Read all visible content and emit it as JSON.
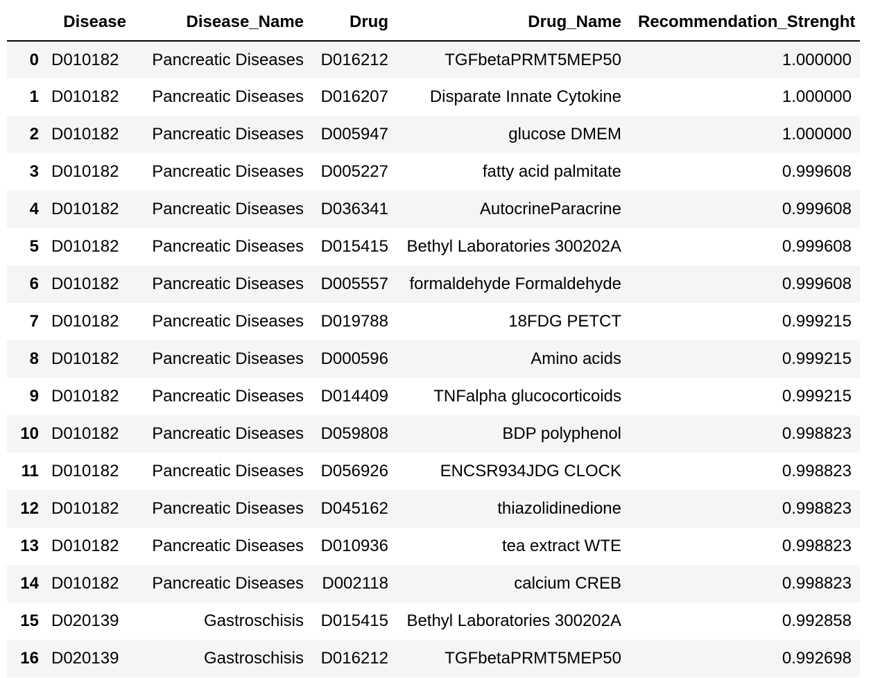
{
  "table": {
    "columns": [
      "",
      "Disease",
      "Disease_Name",
      "Drug",
      "Drug_Name",
      "Recommendation_Strenght"
    ],
    "rows": [
      {
        "index": "0",
        "disease": "D010182",
        "disease_name": "Pancreatic Diseases",
        "drug": "D016212",
        "drug_name": "TGFbetaPRMT5MEP50",
        "strength": "1.000000"
      },
      {
        "index": "1",
        "disease": "D010182",
        "disease_name": "Pancreatic Diseases",
        "drug": "D016207",
        "drug_name": "Disparate Innate Cytokine",
        "strength": "1.000000"
      },
      {
        "index": "2",
        "disease": "D010182",
        "disease_name": "Pancreatic Diseases",
        "drug": "D005947",
        "drug_name": "glucose DMEM",
        "strength": "1.000000"
      },
      {
        "index": "3",
        "disease": "D010182",
        "disease_name": "Pancreatic Diseases",
        "drug": "D005227",
        "drug_name": "fatty acid palmitate",
        "strength": "0.999608"
      },
      {
        "index": "4",
        "disease": "D010182",
        "disease_name": "Pancreatic Diseases",
        "drug": "D036341",
        "drug_name": "AutocrineParacrine",
        "strength": "0.999608"
      },
      {
        "index": "5",
        "disease": "D010182",
        "disease_name": "Pancreatic Diseases",
        "drug": "D015415",
        "drug_name": "Bethyl Laboratories 300202A",
        "strength": "0.999608"
      },
      {
        "index": "6",
        "disease": "D010182",
        "disease_name": "Pancreatic Diseases",
        "drug": "D005557",
        "drug_name": "formaldehyde Formaldehyde",
        "strength": "0.999608"
      },
      {
        "index": "7",
        "disease": "D010182",
        "disease_name": "Pancreatic Diseases",
        "drug": "D019788",
        "drug_name": "18FDG PETCT",
        "strength": "0.999215"
      },
      {
        "index": "8",
        "disease": "D010182",
        "disease_name": "Pancreatic Diseases",
        "drug": "D000596",
        "drug_name": "Amino acids",
        "strength": "0.999215"
      },
      {
        "index": "9",
        "disease": "D010182",
        "disease_name": "Pancreatic Diseases",
        "drug": "D014409",
        "drug_name": "TNFalpha glucocorticoids",
        "strength": "0.999215"
      },
      {
        "index": "10",
        "disease": "D010182",
        "disease_name": "Pancreatic Diseases",
        "drug": "D059808",
        "drug_name": "BDP polyphenol",
        "strength": "0.998823"
      },
      {
        "index": "11",
        "disease": "D010182",
        "disease_name": "Pancreatic Diseases",
        "drug": "D056926",
        "drug_name": "ENCSR934JDG CLOCK",
        "strength": "0.998823"
      },
      {
        "index": "12",
        "disease": "D010182",
        "disease_name": "Pancreatic Diseases",
        "drug": "D045162",
        "drug_name": "thiazolidinedione",
        "strength": "0.998823"
      },
      {
        "index": "13",
        "disease": "D010182",
        "disease_name": "Pancreatic Diseases",
        "drug": "D010936",
        "drug_name": "tea extract WTE",
        "strength": "0.998823"
      },
      {
        "index": "14",
        "disease": "D010182",
        "disease_name": "Pancreatic Diseases",
        "drug": "D002118",
        "drug_name": "calcium CREB",
        "strength": "0.998823"
      },
      {
        "index": "15",
        "disease": "D020139",
        "disease_name": "Gastroschisis",
        "drug": "D015415",
        "drug_name": "Bethyl Laboratories 300202A",
        "strength": "0.992858"
      },
      {
        "index": "16",
        "disease": "D020139",
        "disease_name": "Gastroschisis",
        "drug": "D016212",
        "drug_name": "TGFbetaPRMT5MEP50",
        "strength": "0.992698"
      }
    ]
  },
  "colors": {
    "stripe": "#f5f5f5",
    "header_rule": "#000000"
  }
}
